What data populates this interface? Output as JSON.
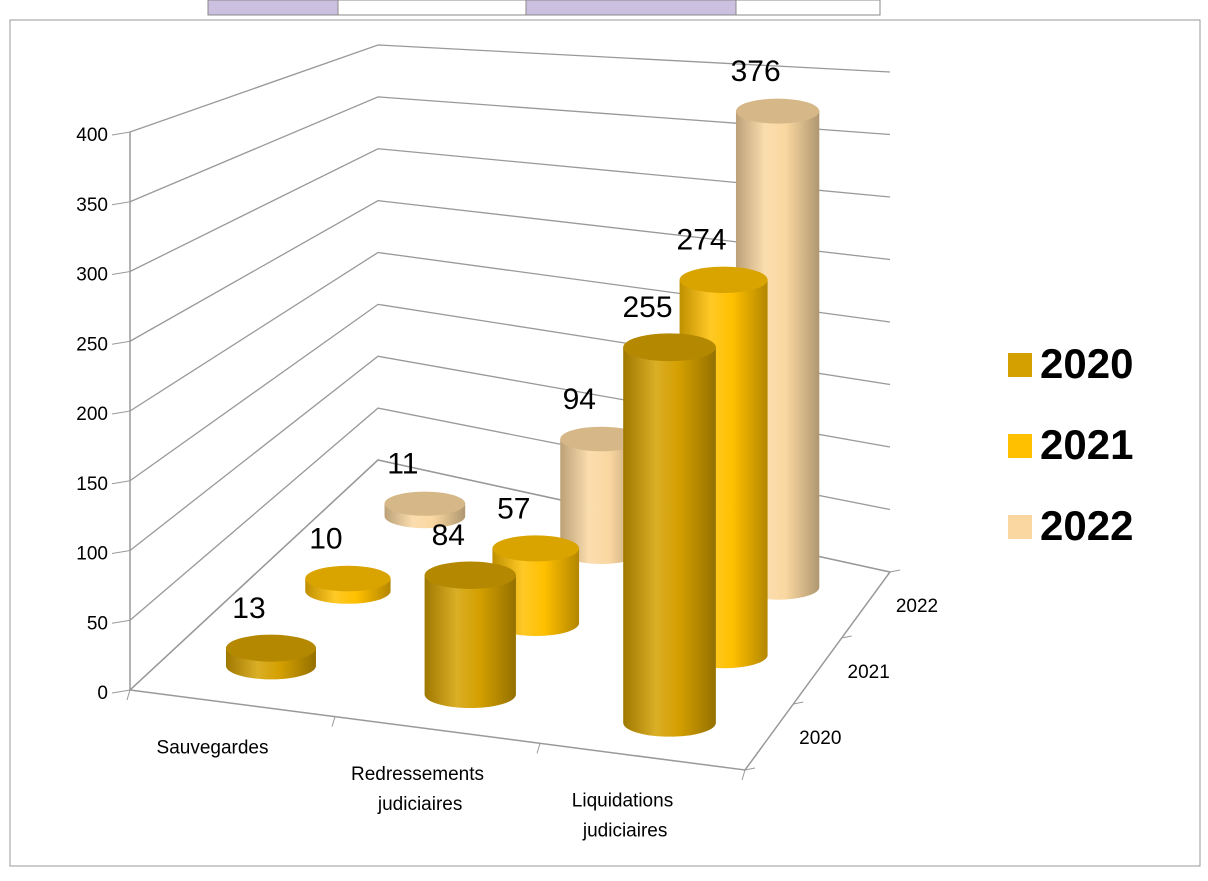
{
  "chart_data": {
    "type": "bar3d",
    "categories": [
      "Sauvegardes",
      "Redressements judiciaires",
      "Liquidations judiciaires"
    ],
    "series": [
      {
        "name": "2020",
        "color": "#d4a000",
        "values": [
          13,
          84,
          255
        ]
      },
      {
        "name": "2021",
        "color": "#ffc000",
        "values": [
          10,
          57,
          274
        ]
      },
      {
        "name": "2022",
        "color": "#fad7a0",
        "values": [
          11,
          94,
          376
        ]
      }
    ],
    "ylim": [
      0,
      400
    ],
    "yticks": [
      0,
      50,
      100,
      150,
      200,
      250,
      300,
      350,
      400
    ],
    "grid": true,
    "legend": "right"
  }
}
